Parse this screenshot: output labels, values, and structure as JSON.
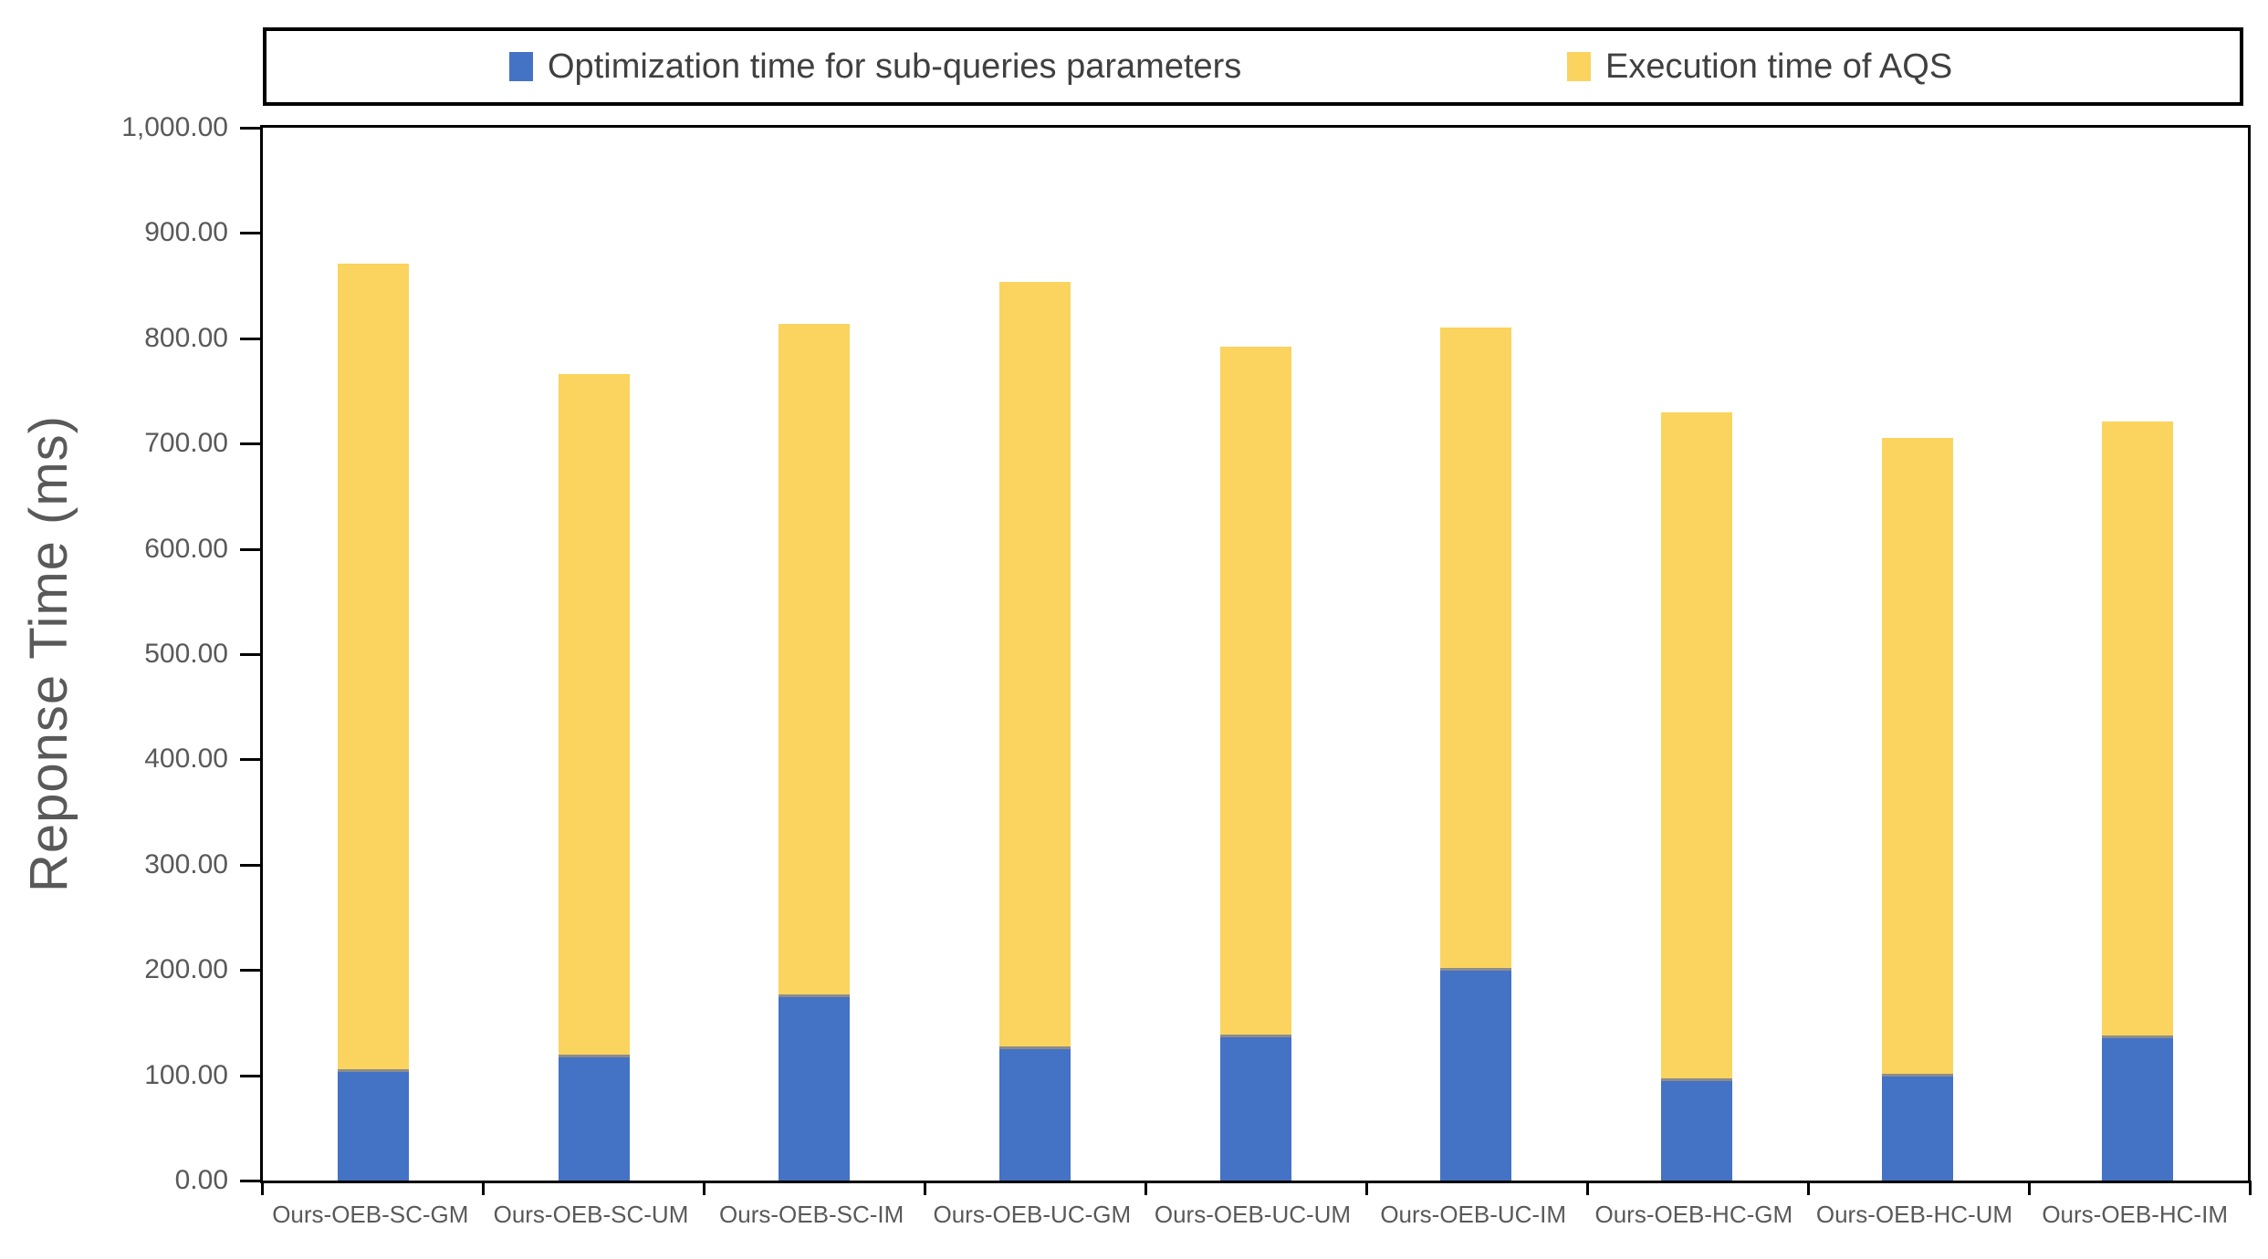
{
  "chart_data": {
    "type": "bar",
    "stacked": true,
    "title": "",
    "categories": [
      "Ours-OEB-SC-GM",
      "Ours-OEB-SC-UM",
      "Ours-OEB-SC-IM",
      "Ours-OEB-UC-GM",
      "Ours-OEB-UC-UM",
      "Ours-OEB-UC-IM",
      "Ours-OEB-HC-GM",
      "Ours-OEB-HC-UM",
      "Ours-OEB-HC-IM"
    ],
    "series": [
      {
        "name": "Optimization time for sub-queries parameters",
        "color": "#4472C4",
        "values": [
          106,
          120,
          177,
          127,
          139,
          202,
          97,
          101,
          138
        ]
      },
      {
        "name": "Execution time of AQS",
        "color": "#FAD45F",
        "values": [
          765,
          646,
          637,
          727,
          653,
          608,
          633,
          604,
          583
        ]
      }
    ],
    "stack_totals": [
      871,
      766,
      814,
      854,
      792,
      810,
      730,
      705,
      721
    ],
    "xlabel": "",
    "ylabel": "Reponse Time (ms)",
    "ylim": [
      0,
      1000
    ],
    "ytick_step": 100,
    "ytick_labels": [
      "0.00",
      "100.00",
      "200.00",
      "300.00",
      "400.00",
      "500.00",
      "600.00",
      "700.00",
      "800.00",
      "900.00",
      "1,000.00"
    ],
    "legend_position": "top",
    "grid": false
  },
  "colors": {
    "axis_line": "#000000",
    "axis_text": "#595959",
    "legend_text": "#404040",
    "segment_divider": "#8c8c8c",
    "background": "#ffffff"
  }
}
